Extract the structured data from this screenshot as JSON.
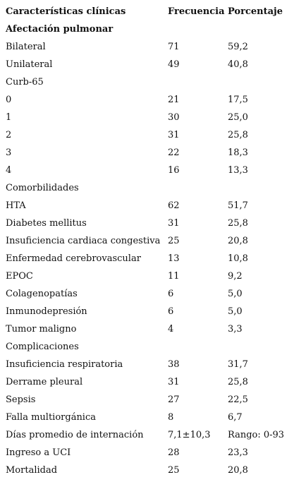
{
  "table": {
    "header": [
      "Características clínicas",
      "Frecuencia",
      "Porcentaje"
    ],
    "rows": [
      [
        "Afectación pulmonar"
      ],
      [
        "Bilateral",
        "71",
        "59,2"
      ],
      [
        "Unilateral",
        "49",
        "40,8"
      ],
      [
        "Curb-65"
      ],
      [
        "0",
        "21",
        "17,5"
      ],
      [
        "1",
        "30",
        "25,0"
      ],
      [
        "2",
        "31",
        "25,8"
      ],
      [
        "3",
        "22",
        "18,3"
      ],
      [
        "4",
        "16",
        "13,3"
      ],
      [
        "Comorbilidades"
      ],
      [
        "HTA",
        "62",
        "51,7"
      ],
      [
        "Diabetes mellitus",
        "31",
        "25,8"
      ],
      [
        "Insuficiencia cardiaca congestiva",
        "25",
        "20,8"
      ],
      [
        "Enfermedad cerebrovascular",
        "13",
        "10,8"
      ],
      [
        "EPOC",
        "11",
        "9,2"
      ],
      [
        "Colagenopatías",
        "6",
        "5,0"
      ],
      [
        "Inmunodepresión",
        "6",
        "5,0"
      ],
      [
        "Tumor maligno",
        "4",
        "3,3"
      ],
      [
        "Complicaciones"
      ],
      [
        "Insuficiencia respiratoria",
        "38",
        "31,7"
      ],
      [
        "Derrame pleural",
        "31",
        "25,8"
      ],
      [
        "Sepsis",
        "27",
        "22,5"
      ],
      [
        "Falla multiorgánica",
        "8",
        "6,7"
      ],
      [
        "Días promedio de internación",
        "7,1±10,3",
        "Rango: 0-93"
      ],
      [
        "Ingreso a UCI",
        "28",
        "23,3"
      ],
      [
        "Mortalidad",
        "25",
        "20,8"
      ]
    ]
  }
}
